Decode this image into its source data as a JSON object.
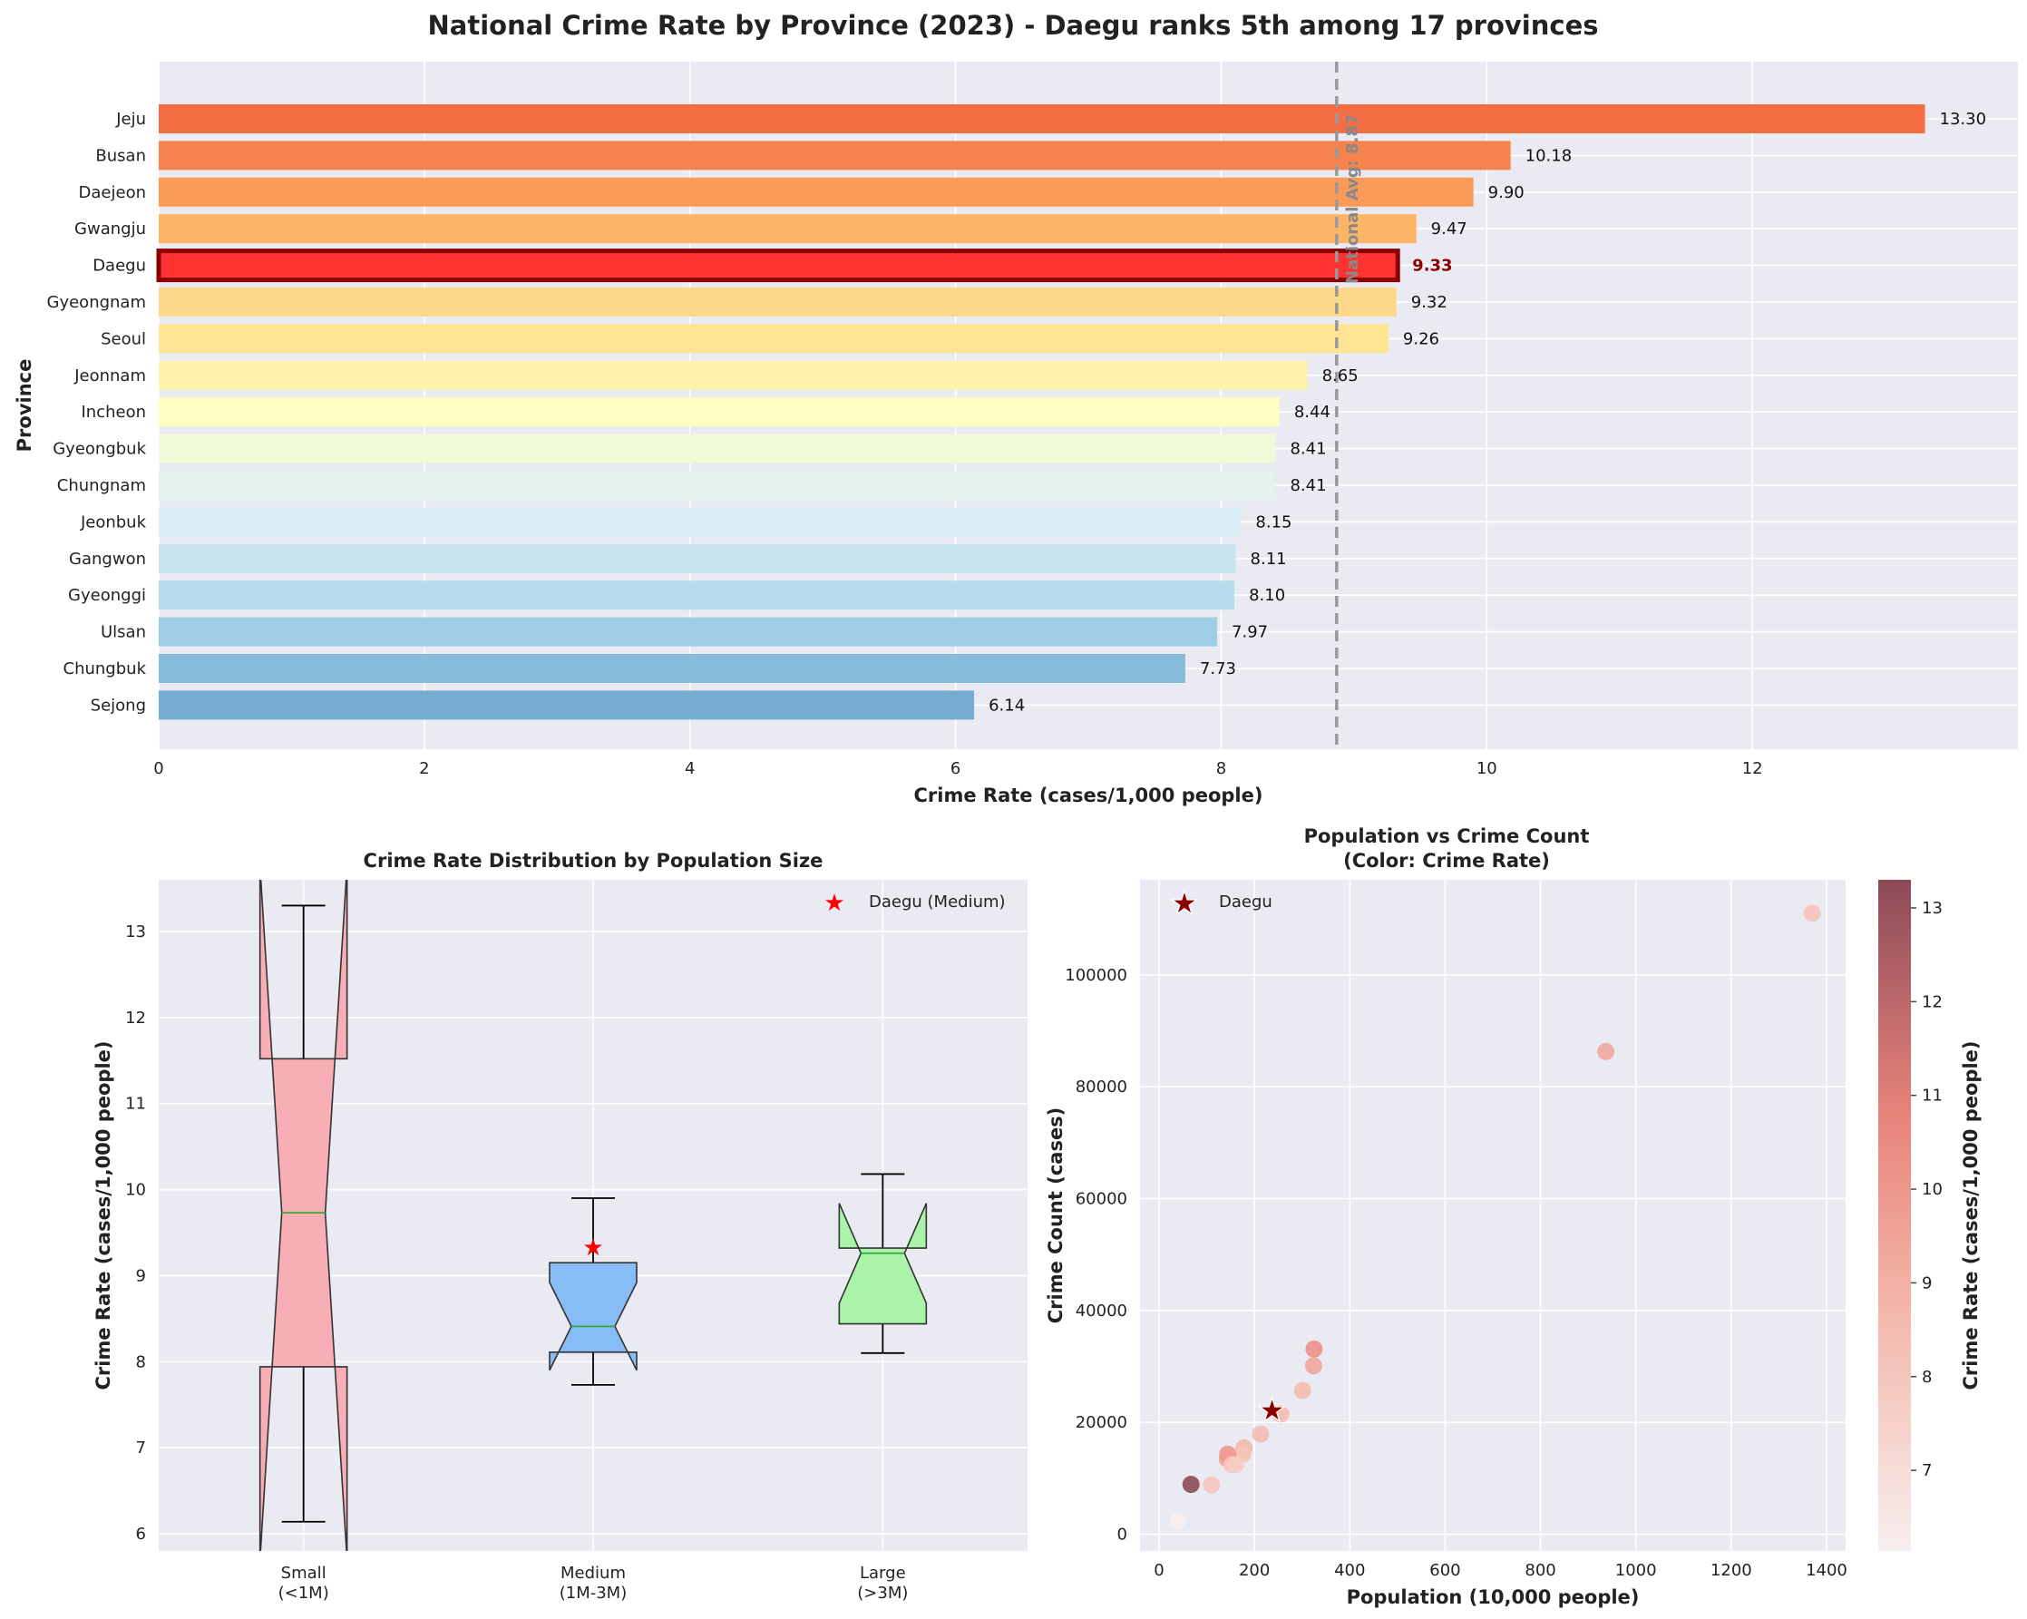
{
  "suptitle": "National Crime Rate by Province (2023) - Daegu ranks 5th among 17 provinces",
  "chart_data": [
    {
      "type": "bar",
      "orientation": "horizontal",
      "xlabel": "Crime Rate (cases/1,000 people)",
      "ylabel": "Province",
      "xlim": [
        0,
        14
      ],
      "xticks": [
        0,
        2,
        4,
        6,
        8,
        10,
        12
      ],
      "grid": true,
      "highlight": "Daegu",
      "reference_line": {
        "label": "National Avg: 8.87",
        "value": 8.87
      },
      "categories": [
        "Jeju",
        "Busan",
        "Daejeon",
        "Gwangju",
        "Daegu",
        "Gyeongnam",
        "Seoul",
        "Jeonnam",
        "Incheon",
        "Gyeongbuk",
        "Chungnam",
        "Jeonbuk",
        "Gangwon",
        "Gyeonggi",
        "Ulsan",
        "Chungbuk",
        "Sejong"
      ],
      "values": [
        13.3,
        10.18,
        9.9,
        9.47,
        9.33,
        9.32,
        9.26,
        8.65,
        8.44,
        8.41,
        8.41,
        8.15,
        8.11,
        8.1,
        7.97,
        7.73,
        6.14
      ],
      "value_labels": [
        "13.30",
        "10.18",
        "9.90",
        "9.47",
        "9.33",
        "9.32",
        "9.26",
        "8.65",
        "8.44",
        "8.41",
        "8.41",
        "8.15",
        "8.11",
        "8.10",
        "7.97",
        "7.73",
        "6.14"
      ],
      "colors": [
        "#f46d43",
        "#f6824d",
        "#f99a58",
        "#fcb567",
        "#ff3333",
        "#fed88a",
        "#fee596",
        "#fff2aa",
        "#feffc0",
        "#f0f9d8",
        "#e4f4ec",
        "#d9eff5",
        "#c8e5ef",
        "#b4dcea",
        "#9fcde3",
        "#87bcdb",
        "#74add1"
      ],
      "highlight_color": "#ff3333",
      "highlight_edge": "#8b0000"
    },
    {
      "type": "box",
      "title": "Crime Rate Distribution by Population Size",
      "ylabel": "Crime Rate (cases/1,000 people)",
      "ylim": [
        5.8,
        13.6
      ],
      "yticks": [
        6,
        7,
        8,
        9,
        10,
        11,
        12,
        13
      ],
      "notched": true,
      "grid": true,
      "legend": {
        "label": "Daegu (Medium)",
        "position": "top-right"
      },
      "groups": [
        {
          "label_line1": "Small",
          "label_line2": "(<1M)",
          "color": "#f7aeb4",
          "min": 6.14,
          "q1": 7.94,
          "median": 9.73,
          "q3": 11.52,
          "max": 13.3,
          "notch_low": 5.7,
          "notch_high": 13.76
        },
        {
          "label_line1": "Medium",
          "label_line2": "(1M-3M)",
          "color": "#87bdf6",
          "min": 7.73,
          "q1": 8.11,
          "median": 8.41,
          "q3": 9.15,
          "max": 9.9,
          "notch_low": 7.9,
          "notch_high": 8.92
        },
        {
          "label_line1": "Large",
          "label_line2": "(>3M)",
          "color": "#a9f4a9",
          "min": 8.1,
          "q1": 8.44,
          "median": 9.26,
          "q3": 9.32,
          "max": 10.18,
          "notch_low": 8.68,
          "notch_high": 9.84
        }
      ],
      "daegu_marker": {
        "group": 1,
        "value": 9.33
      }
    },
    {
      "type": "scatter",
      "title_line1": "Population vs Crime Count",
      "title_line2": "(Color: Crime Rate)",
      "xlabel": "Population (10,000 people)",
      "ylabel": "Crime Count (cases)",
      "xlim": [
        -40,
        1440
      ],
      "ylim": [
        -3000,
        117000
      ],
      "xticks": [
        0,
        200,
        400,
        600,
        800,
        1000,
        1200,
        1400
      ],
      "yticks": [
        0,
        20000,
        40000,
        60000,
        80000,
        100000
      ],
      "grid": true,
      "legend": {
        "label": "Daegu",
        "position": "top-left"
      },
      "colorbar": {
        "label": "Crime Rate (cases/1,000 people)",
        "min": 6.14,
        "max": 13.3,
        "ticks": [
          7,
          8,
          9,
          10,
          11,
          12,
          13
        ]
      },
      "points": [
        {
          "name": "Gyeonggi",
          "x": 1370,
          "y": 111000,
          "rate": 8.1
        },
        {
          "name": "Seoul",
          "x": 937,
          "y": 86300,
          "rate": 9.26
        },
        {
          "name": "Busan",
          "x": 325,
          "y": 33100,
          "rate": 10.18
        },
        {
          "name": "Gyeongnam",
          "x": 324,
          "y": 30100,
          "rate": 9.32
        },
        {
          "name": "Incheon",
          "x": 301,
          "y": 25700,
          "rate": 8.44
        },
        {
          "name": "Gyeongbuk",
          "x": 255,
          "y": 21500,
          "rate": 8.41
        },
        {
          "name": "Chungnam",
          "x": 213,
          "y": 17900,
          "rate": 8.41
        },
        {
          "name": "Jeonnam",
          "x": 178,
          "y": 15400,
          "rate": 8.65
        },
        {
          "name": "Jeonbuk",
          "x": 175,
          "y": 14300,
          "rate": 8.15
        },
        {
          "name": "Gwangju",
          "x": 143,
          "y": 13500,
          "rate": 9.47
        },
        {
          "name": "Daejeon",
          "x": 144,
          "y": 14300,
          "rate": 9.9
        },
        {
          "name": "Gangwon",
          "x": 153,
          "y": 12400,
          "rate": 8.11
        },
        {
          "name": "Chungbuk",
          "x": 160,
          "y": 12400,
          "rate": 7.73
        },
        {
          "name": "Ulsan",
          "x": 110,
          "y": 8800,
          "rate": 7.97
        },
        {
          "name": "Jeju",
          "x": 67,
          "y": 8900,
          "rate": 13.3
        },
        {
          "name": "Sejong",
          "x": 39,
          "y": 2400,
          "rate": 6.14
        }
      ],
      "daegu": {
        "x": 237,
        "y": 22100,
        "rate": 9.33
      }
    }
  ]
}
